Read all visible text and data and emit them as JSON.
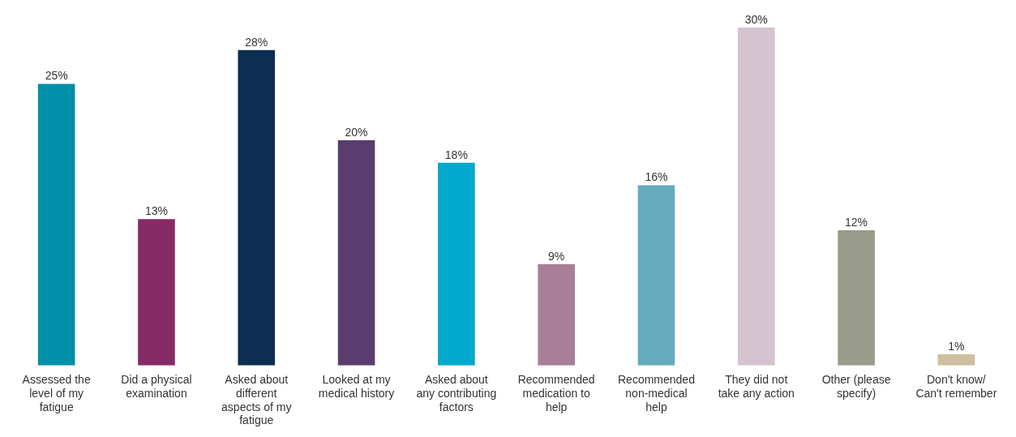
{
  "chart_data": {
    "type": "bar",
    "categories": [
      "Assessed the level of my fatigue",
      "Did a physical examination",
      "Asked about different aspects of my fatigue",
      "Looked at my medical history",
      "Asked about any contributing factors",
      "Recommended medication to help",
      "Recommended non-medical help",
      "They did not take any action",
      "Other (please specify)",
      "Don't know/ Can't remember"
    ],
    "values": [
      25,
      13,
      28,
      20,
      18,
      9,
      16,
      30,
      12,
      1
    ],
    "colors": [
      "#008fa8",
      "#862a66",
      "#0e2d52",
      "#5a3d6e",
      "#00a9cb",
      "#a87f97",
      "#66aabd",
      "#d5c3cf",
      "#999b8b",
      "#cdbf9f"
    ],
    "value_labels": [
      "25%",
      "13%",
      "28%",
      "20%",
      "18%",
      "9%",
      "16%",
      "30%",
      "12%",
      "1%"
    ],
    "grid": false,
    "legend": false
  }
}
